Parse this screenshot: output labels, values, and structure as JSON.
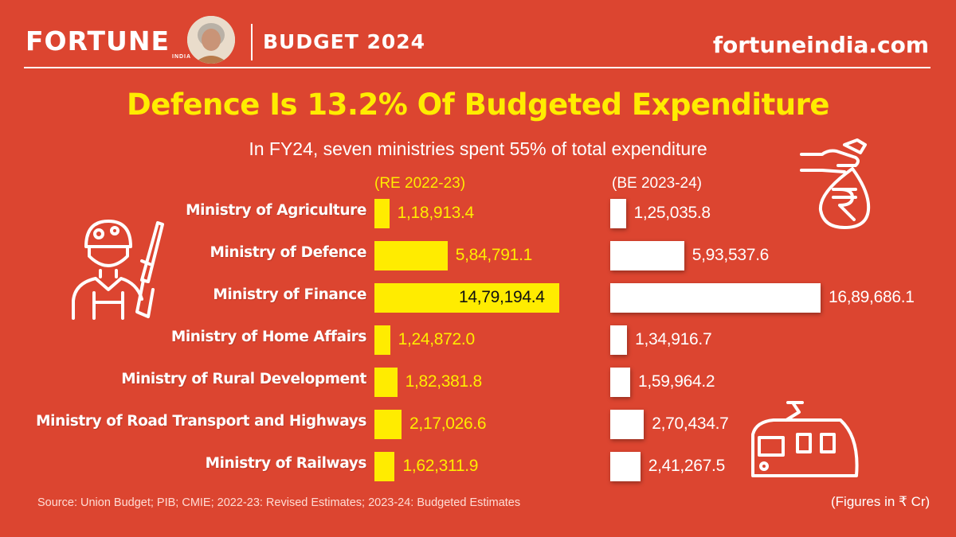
{
  "header": {
    "brand": "FORTUNE",
    "brand_sub": "INDIA",
    "edition": "BUDGET 2024",
    "site": "fortuneindia.com"
  },
  "title": "Defence Is 13.2% Of Budgeted Expenditure",
  "subtitle": "In FY24, seven ministries spent 55% of total expenditure",
  "chart_data": {
    "type": "bar",
    "orientation": "horizontal",
    "title": "Defence Is 13.2% Of Budgeted Expenditure",
    "subtitle": "In FY24, seven ministries spent 55% of total expenditure",
    "units": "(Figures in ₹ Cr)",
    "categories": [
      "Ministry of Agriculture",
      "Ministry of Defence",
      "Ministry of Finance",
      "Ministry of Home Affairs",
      "Ministry of Rural Development",
      "Ministry of Road Transport and Highways",
      "Ministry of Railways"
    ],
    "series": [
      {
        "name": "(RE 2022-23)",
        "color": "#ffec00",
        "values": [
          118913.4,
          584791.1,
          1479194.4,
          124872.0,
          182381.8,
          217026.6,
          162311.9
        ],
        "value_labels": [
          "1,18,913.4",
          "5,84,791.1",
          "14,79,194.4",
          "1,24,872.0",
          "1,82,381.8",
          "2,17,026.6",
          "1,62,311.9"
        ]
      },
      {
        "name": "(BE 2023-24)",
        "color": "#ffffff",
        "values": [
          125035.8,
          593537.6,
          1689686.1,
          134916.7,
          159964.2,
          270434.7,
          241267.5
        ],
        "value_labels": [
          "1,25,035.8",
          "5,93,537.6",
          "16,89,686.1",
          "1,34,916.7",
          "1,59,964.2",
          "2,70,434.7",
          "2,41,267.5"
        ]
      }
    ]
  },
  "footer": {
    "source": "Source: Union Budget; PIB; CMIE; 2022-23: Revised Estimates; 2023-24: Budgeted Estimates",
    "units": "(Figures in ₹ Cr)"
  },
  "icons": [
    "portrait-photo",
    "soldier-icon",
    "money-bag-icon",
    "train-icon"
  ],
  "colors": {
    "background": "#dc4530",
    "accent": "#ffec00",
    "bar_be": "#ffffff"
  }
}
